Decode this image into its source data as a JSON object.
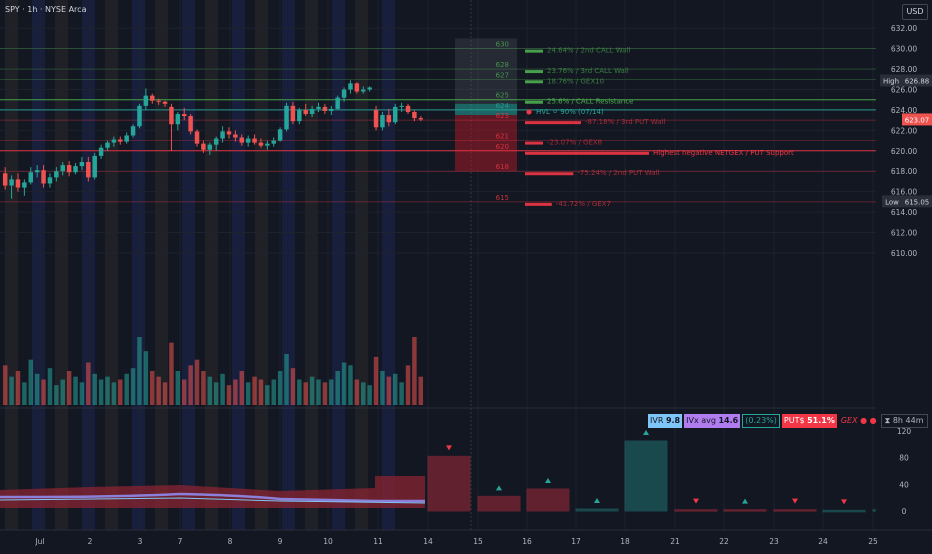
{
  "header": {
    "symbol_info": "SPY · 1h · NYSE Arca",
    "currency": "USD"
  },
  "price_axis": {
    "ticks": [
      "632.00",
      "630.00",
      "628.00",
      "626.00",
      "624.00",
      "622.00",
      "620.00",
      "618.00",
      "616.00",
      "614.00",
      "612.00",
      "610.00"
    ],
    "high_tag": {
      "label": "High",
      "value": "626.88"
    },
    "low_tag": {
      "label": "Low",
      "value": "615.05"
    },
    "current": {
      "value": "623.07"
    }
  },
  "time_axis": {
    "labels": [
      "Jul",
      "2",
      "3",
      "7",
      "8",
      "9",
      "10",
      "11",
      "14",
      "15",
      "16",
      "17",
      "18",
      "21",
      "22",
      "23",
      "24",
      "25"
    ]
  },
  "levels": [
    {
      "price": "630",
      "label": "24.64% / 2nd CALL Wall"
    },
    {
      "price": "628",
      "label": "23.76% / 3rd CALL Wall"
    },
    {
      "price": "627",
      "label": "18.76% / GEX10"
    },
    {
      "price": "625",
      "label": "25.6% / CALL Resistance"
    },
    {
      "price": "624",
      "label": "HVL ⚪ 90% (07/14)"
    },
    {
      "price": "623",
      "label": "-87.18% / 3rd PUT Wall"
    },
    {
      "price": "621",
      "label": "-23.07% / GEX8"
    },
    {
      "price": "620",
      "label": "Highest negative NETGEX / PUT Support"
    },
    {
      "price": "618",
      "label": "-75.24% / 2nd PUT Wall"
    },
    {
      "price": "615",
      "label": "-41.72% / GEX7"
    }
  ],
  "indicator": {
    "ivr_label": "IVR",
    "ivr_value": "9.8",
    "ivx_label": "IVx avg",
    "ivx_value": "14.6",
    "change": "(0.23%)",
    "puts_label": "PUT$",
    "puts_value": "51.1%",
    "gex_label": "GEX",
    "timer": "8h 44m",
    "ticks": [
      "120",
      "80",
      "40",
      "0"
    ],
    "colors": {
      "ivr_bg": "#7ec6f7",
      "ivx_bg": "#b07cf0",
      "puts_bg": "#f23645",
      "green": "#26a69a",
      "red": "#f23645"
    }
  },
  "colors": {
    "background": "#131722",
    "up": "#26a69a",
    "down": "#ef5350",
    "call_line": "#4caf50",
    "put_line": "#f23645",
    "hvl_teal": "#26a69a"
  },
  "chart_data": {
    "type": "candlestick",
    "symbol": "SPY",
    "interval": "1h",
    "series": [
      {
        "name": "SPY",
        "ohlc": [
          [
            617.8,
            618.4,
            616.2,
            616.6
          ],
          [
            616.6,
            617.6,
            615.3,
            617.2
          ],
          [
            617.2,
            617.8,
            616.0,
            616.4
          ],
          [
            616.4,
            617.2,
            615.6,
            616.9
          ],
          [
            616.9,
            618.4,
            616.7,
            617.9
          ],
          [
            617.9,
            618.6,
            617.4,
            618.1
          ],
          [
            618.1,
            618.6,
            616.4,
            616.8
          ],
          [
            616.8,
            617.8,
            616.4,
            617.4
          ],
          [
            617.4,
            618.4,
            617.0,
            618.0
          ],
          [
            618.0,
            618.9,
            617.6,
            618.6
          ],
          [
            618.6,
            619.0,
            617.5,
            617.9
          ],
          [
            617.9,
            618.8,
            617.7,
            618.5
          ],
          [
            618.5,
            619.4,
            618.1,
            618.9
          ],
          [
            618.9,
            619.4,
            617.0,
            617.4
          ],
          [
            617.4,
            619.8,
            617.2,
            619.5
          ],
          [
            619.5,
            620.6,
            619.2,
            620.3
          ],
          [
            620.3,
            621.0,
            620.0,
            620.8
          ],
          [
            620.8,
            621.4,
            620.4,
            621.1
          ],
          [
            621.1,
            621.4,
            620.6,
            620.9
          ],
          [
            620.9,
            621.8,
            620.7,
            621.5
          ],
          [
            621.5,
            622.6,
            621.3,
            622.4
          ],
          [
            622.4,
            624.6,
            622.2,
            624.4
          ],
          [
            624.4,
            626.1,
            624.0,
            625.4
          ],
          [
            625.4,
            625.6,
            624.6,
            624.9
          ],
          [
            624.9,
            625.1,
            624.5,
            624.8
          ],
          [
            624.8,
            624.9,
            624.3,
            624.6
          ],
          [
            624.3,
            624.6,
            620.0,
            622.6
          ],
          [
            622.6,
            623.8,
            622.0,
            623.6
          ],
          [
            623.6,
            624.2,
            623.0,
            623.4
          ],
          [
            623.4,
            623.6,
            621.6,
            621.9
          ],
          [
            621.9,
            622.1,
            620.4,
            620.7
          ],
          [
            620.7,
            621.0,
            619.8,
            620.1
          ],
          [
            620.1,
            620.8,
            619.6,
            620.6
          ],
          [
            620.6,
            621.4,
            620.0,
            621.2
          ],
          [
            621.2,
            622.4,
            620.8,
            621.9
          ],
          [
            621.9,
            622.3,
            621.2,
            621.6
          ],
          [
            621.6,
            622.0,
            620.9,
            621.3
          ],
          [
            621.3,
            621.6,
            620.5,
            620.8
          ],
          [
            620.8,
            621.5,
            620.4,
            621.2
          ],
          [
            621.2,
            621.6,
            620.6,
            620.8
          ],
          [
            620.8,
            621.2,
            620.3,
            620.5
          ],
          [
            620.5,
            621.0,
            620.1,
            620.7
          ],
          [
            620.7,
            621.3,
            620.4,
            621.0
          ],
          [
            621.0,
            622.3,
            620.9,
            622.1
          ],
          [
            622.1,
            624.7,
            621.9,
            624.4
          ],
          [
            624.4,
            624.8,
            622.6,
            622.9
          ],
          [
            622.9,
            624.2,
            622.6,
            624.0
          ],
          [
            624.0,
            624.6,
            623.4,
            623.6
          ],
          [
            623.6,
            624.4,
            623.3,
            624.1
          ],
          [
            624.1,
            624.7,
            623.8,
            624.3
          ],
          [
            624.3,
            624.6,
            623.6,
            623.9
          ],
          [
            623.9,
            624.4,
            623.5,
            624.1
          ],
          [
            624.1,
            625.4,
            624.0,
            625.2
          ],
          [
            625.2,
            626.2,
            624.8,
            626.0
          ],
          [
            626.0,
            626.9,
            625.6,
            626.6
          ],
          [
            626.6,
            626.7,
            625.6,
            625.8
          ],
          [
            625.8,
            626.3,
            625.6,
            626.0
          ],
          [
            626.0,
            626.3,
            625.8,
            626.2
          ],
          [
            624.0,
            624.4,
            622.0,
            622.3
          ],
          [
            622.3,
            623.8,
            622.0,
            623.5
          ],
          [
            623.5,
            624.1,
            622.4,
            622.8
          ],
          [
            622.8,
            624.6,
            622.6,
            624.3
          ],
          [
            624.3,
            624.7,
            623.8,
            624.4
          ],
          [
            624.4,
            624.6,
            623.6,
            623.8
          ],
          [
            623.8,
            624.0,
            622.9,
            623.2
          ],
          [
            623.2,
            623.4,
            622.9,
            623.07
          ]
        ]
      }
    ],
    "volume": [
      14,
      10,
      12,
      8,
      16,
      11,
      9,
      13,
      7,
      9,
      12,
      10,
      8,
      15,
      11,
      9,
      10,
      8,
      9,
      11,
      13,
      24,
      19,
      12,
      10,
      8,
      22,
      12,
      9,
      14,
      16,
      12,
      10,
      8,
      11,
      7,
      9,
      12,
      8,
      10,
      9,
      7,
      9,
      12,
      18,
      13,
      9,
      8,
      10,
      9,
      8,
      9,
      12,
      15,
      14,
      9,
      8,
      7,
      17,
      12,
      10,
      11,
      8,
      14,
      24,
      10
    ],
    "xlabels": [
      "Jul",
      "2",
      "3",
      "7",
      "8",
      "9",
      "10",
      "11",
      "14",
      "15",
      "16",
      "17",
      "18",
      "21",
      "22",
      "23",
      "24",
      "25"
    ],
    "ylim": [
      609,
      633
    ],
    "high": 626.88,
    "low": 615.05,
    "last": 623.07,
    "gex_levels": [
      {
        "price": 630,
        "text": "24.64% / 2nd CALL Wall",
        "kind": "call"
      },
      {
        "price": 628,
        "text": "23.76% / 3rd CALL Wall",
        "kind": "call"
      },
      {
        "price": 627,
        "text": "18.76% / GEX10",
        "kind": "call"
      },
      {
        "price": 625,
        "text": "25.6% / CALL Resistance",
        "kind": "call"
      },
      {
        "price": 624,
        "text": "HVL ⚪ 90% (07/14)",
        "kind": "hvl"
      },
      {
        "price": 623,
        "text": "-87.18% / 3rd PUT Wall",
        "kind": "put"
      },
      {
        "price": 621,
        "text": "-23.07% / GEX8",
        "kind": "put"
      },
      {
        "price": 620,
        "text": "Highest negative NETGEX / PUT Support",
        "kind": "put"
      },
      {
        "price": 618,
        "text": "-75.24% / 2nd PUT Wall",
        "kind": "put"
      },
      {
        "price": 615,
        "text": "-41.72% / GEX7",
        "kind": "put"
      }
    ],
    "indicator_ylim": [
      0,
      130
    ],
    "indicator_ticks": [
      0,
      40,
      80,
      120
    ],
    "indicator_bars": [
      {
        "day": "14",
        "value": 82,
        "kind": "red",
        "arrow": "down"
      },
      {
        "day": "15",
        "value": 22,
        "kind": "red",
        "arrow": "up"
      },
      {
        "day": "16",
        "value": 33,
        "kind": "red",
        "arrow": "up"
      },
      {
        "day": "17",
        "value": 3,
        "kind": "green",
        "arrow": "up"
      },
      {
        "day": "18",
        "value": 105,
        "kind": "green",
        "arrow": "up"
      },
      {
        "day": "21",
        "value": 2,
        "kind": "red",
        "arrow": "down"
      },
      {
        "day": "22",
        "value": 2,
        "kind": "red",
        "arrow": "up"
      },
      {
        "day": "23",
        "value": 2,
        "kind": "red",
        "arrow": "down"
      },
      {
        "day": "24",
        "value": 1,
        "kind": "green",
        "arrow": "down"
      },
      {
        "day": "25",
        "value": 2,
        "kind": "green",
        "arrow": "up"
      }
    ]
  }
}
